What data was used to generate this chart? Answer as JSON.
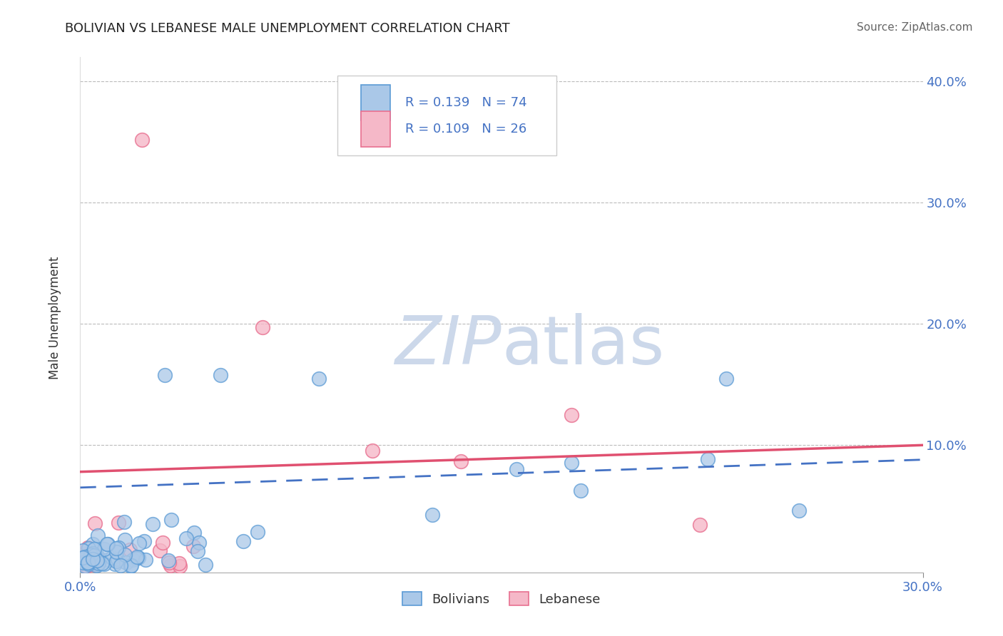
{
  "title": "BOLIVIAN VS LEBANESE MALE UNEMPLOYMENT CORRELATION CHART",
  "source_text": "Source: ZipAtlas.com",
  "ylabel": "Male Unemployment",
  "xlim": [
    0.0,
    0.3
  ],
  "ylim": [
    -0.005,
    0.42
  ],
  "ytick_vals": [
    0.1,
    0.2,
    0.3,
    0.4
  ],
  "ytick_labels": [
    "10.0%",
    "20.0%",
    "30.0%",
    "40.0%"
  ],
  "xtick_vals": [
    0.0,
    0.3
  ],
  "xtick_labels": [
    "0.0%",
    "30.0%"
  ],
  "grid_color": "#bbbbbb",
  "background_color": "#ffffff",
  "bolivian_face": "#aac8e8",
  "bolivian_edge": "#5b9bd5",
  "lebanese_face": "#f5b8c8",
  "lebanese_edge": "#e87090",
  "trend_bolivian_color": "#4472c4",
  "trend_lebanese_color": "#e05070",
  "tick_color": "#4472c4",
  "title_color": "#222222",
  "source_color": "#666666",
  "R_bolivian": 0.139,
  "N_bolivian": 74,
  "R_lebanese": 0.109,
  "N_lebanese": 26,
  "label_bolivian": "Bolivians",
  "label_lebanese": "Lebanese",
  "watermark_color": "#ccd8ea",
  "legend_label_color": "#4472c4",
  "bolivian_trend_start": 0.065,
  "bolivian_trend_end": 0.088,
  "lebanese_trend_start": 0.078,
  "lebanese_trend_end": 0.1
}
